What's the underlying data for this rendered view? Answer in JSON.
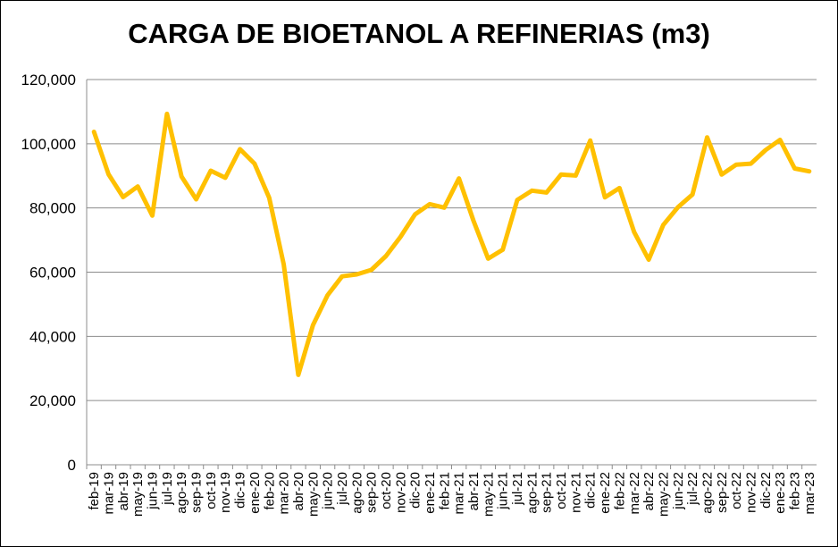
{
  "chart_data": {
    "type": "line",
    "title": "CARGA DE BIOETANOL A REFINERIAS (m3)",
    "xlabel": "",
    "ylabel": "",
    "ylim": [
      0,
      120000
    ],
    "yticks": [
      "0",
      "20,000",
      "40,000",
      "60,000",
      "80,000",
      "100,000",
      "120,000"
    ],
    "grid": true,
    "legend": "none",
    "line_color": "#FFC000",
    "categories": [
      "feb-19",
      "mar-19",
      "abr-19",
      "may-19",
      "jun-19",
      "jul-19",
      "ago-19",
      "sep-19",
      "oct-19",
      "nov-19",
      "dic-19",
      "ene-20",
      "feb-20",
      "mar-20",
      "abr-20",
      "may-20",
      "jun-20",
      "jul-20",
      "ago-20",
      "sep-20",
      "oct-20",
      "nov-20",
      "dic-20",
      "ene-21",
      "feb-21",
      "mar-21",
      "abr-21",
      "may-21",
      "jun-21",
      "jul-21",
      "ago-21",
      "sep-21",
      "oct-21",
      "nov-21",
      "dic-21",
      "ene-22",
      "feb-22",
      "mar-22",
      "abr-22",
      "may-22",
      "jun-22",
      "jul-22",
      "ago-22",
      "sep-22",
      "oct-22",
      "nov-22",
      "dic-22",
      "ene-23",
      "feb-23",
      "mar-23"
    ],
    "series": [
      {
        "values": [
          103700,
          90500,
          83400,
          86700,
          77600,
          109300,
          89800,
          82700,
          91600,
          89400,
          98300,
          93800,
          83200,
          62400,
          28000,
          43500,
          52800,
          58700,
          59300,
          60700,
          65000,
          71000,
          78000,
          81200,
          80100,
          89200,
          76000,
          64200,
          67000,
          82500,
          85400,
          84800,
          90400,
          90100,
          101000,
          83300,
          86200,
          72500,
          63900,
          74700,
          80200,
          84200,
          102000,
          90400,
          93500,
          93800,
          98000,
          101200,
          92300,
          91400
        ]
      }
    ]
  }
}
